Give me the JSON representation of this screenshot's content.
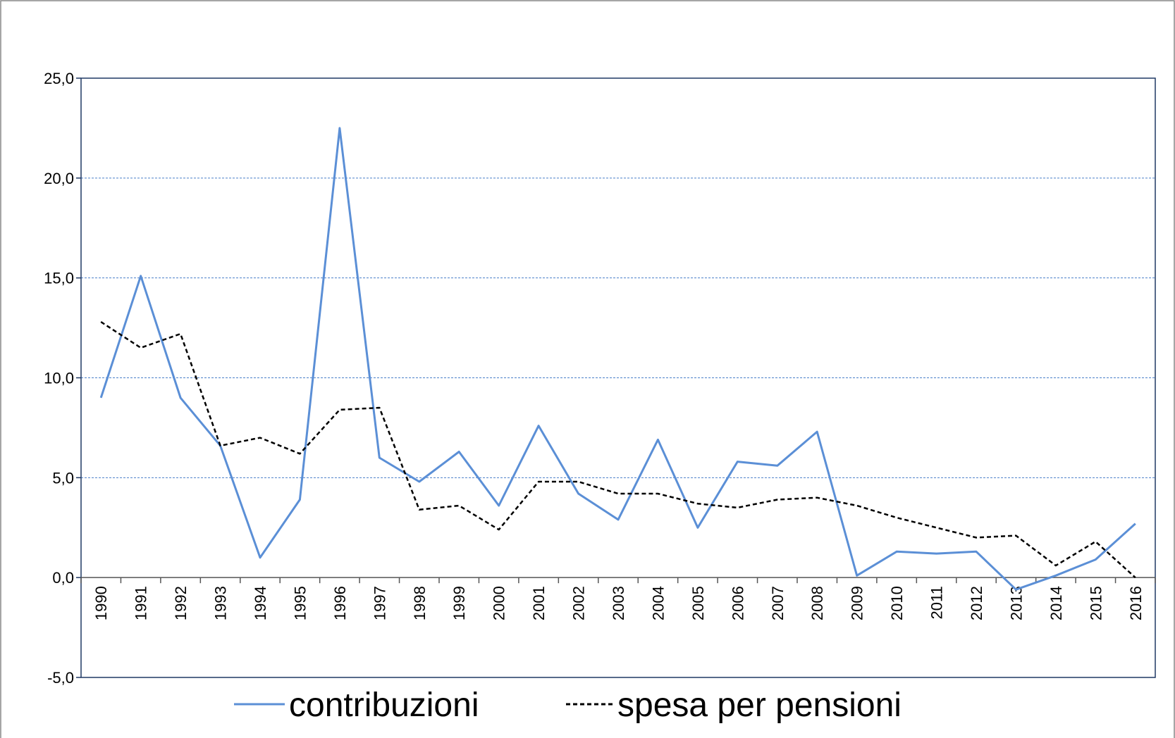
{
  "chart_data": {
    "type": "line",
    "categories": [
      "1990",
      "1991",
      "1992",
      "1993",
      "1994",
      "1995",
      "1996",
      "1997",
      "1998",
      "1999",
      "2000",
      "2001",
      "2002",
      "2003",
      "2004",
      "2005",
      "2006",
      "2007",
      "2008",
      "2009",
      "2010",
      "2011",
      "2012",
      "2013",
      "2014",
      "2015",
      "2016"
    ],
    "series": [
      {
        "name": "contribuzioni",
        "color": "#5b8fd6",
        "dash": "solid",
        "values": [
          9.0,
          15.1,
          9.0,
          6.6,
          1.0,
          3.9,
          22.5,
          6.0,
          4.8,
          6.3,
          3.6,
          7.6,
          4.2,
          2.9,
          6.9,
          2.5,
          5.8,
          5.6,
          7.3,
          0.1,
          1.3,
          1.2,
          1.3,
          -0.6,
          0.1,
          0.9,
          2.7
        ]
      },
      {
        "name": "spesa per pensioni",
        "color": "#000000",
        "dash": "dashed",
        "values": [
          12.8,
          11.5,
          12.2,
          6.6,
          7.0,
          6.2,
          8.4,
          8.5,
          3.4,
          3.6,
          2.4,
          4.8,
          4.8,
          4.2,
          4.2,
          3.7,
          3.5,
          3.9,
          4.0,
          3.6,
          3.0,
          2.5,
          2.0,
          2.1,
          0.6,
          1.8,
          0.0
        ]
      }
    ],
    "ylim": [
      -5,
      25
    ],
    "yticks": [
      {
        "value": -5,
        "label": "-5,0"
      },
      {
        "value": 0,
        "label": "0,0"
      },
      {
        "value": 5,
        "label": "5,0"
      },
      {
        "value": 10,
        "label": "10,0"
      },
      {
        "value": 15,
        "label": "15,0"
      },
      {
        "value": 20,
        "label": "20,0"
      },
      {
        "value": 25,
        "label": "25,0"
      }
    ],
    "grid": true,
    "legend": "bottom"
  }
}
